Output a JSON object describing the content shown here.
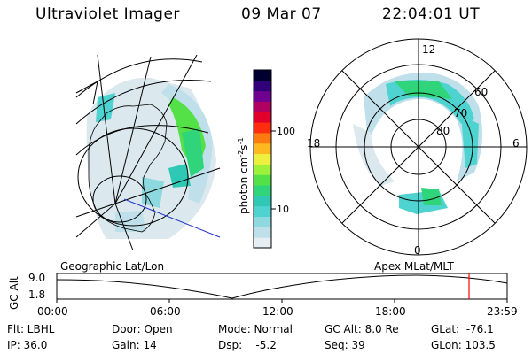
{
  "header": {
    "title": "Ultraviolet Imager",
    "date": "09 Mar 07",
    "time": "22:04:01 UT"
  },
  "colorbar": {
    "label": "photon cm⁻²s⁻¹",
    "label_main": "photon cm",
    "label_sup1": "-2",
    "label_mid": "s",
    "label_sup2": "-1",
    "ticks": [
      "100",
      "10"
    ],
    "colors": [
      "#e6eef3",
      "#bfe0ea",
      "#8ed8e0",
      "#4fd3d0",
      "#2ec8b4",
      "#30d47a",
      "#54e047",
      "#9ff03a",
      "#eef040",
      "#ffb820",
      "#ff7a10",
      "#ff2d10",
      "#e0002a",
      "#b00060",
      "#700090",
      "#30007a",
      "#000030"
    ]
  },
  "polar": {
    "mlt_labels": {
      "top": "12",
      "bottom": "0",
      "left": "18",
      "right": "6"
    },
    "lat_labels": [
      "60",
      "70",
      "80"
    ]
  },
  "timeline": {
    "left_title": "Geographic Lat/Lon",
    "right_title": "Apex  MLat/MLT",
    "axis_label": "GC Alt",
    "ymax": "9.0",
    "ymin": "1.8",
    "x_ticks": [
      "00:00",
      "06:00",
      "12:00",
      "18:00",
      "23:59"
    ],
    "marker_color": "#ff0000"
  },
  "info": {
    "flt": "Flt: LBHL",
    "ip": "IP: 36.0",
    "door": "Door: Open",
    "gain": "Gain: 14",
    "mode": "Mode: Normal",
    "dsp": "Dsp:    -5.2",
    "gcalt": "GC Alt: 8.0 Re",
    "seq": "Seq: 39",
    "glat": "GLat:  -76.1",
    "glon": "GLon: 103.5"
  }
}
